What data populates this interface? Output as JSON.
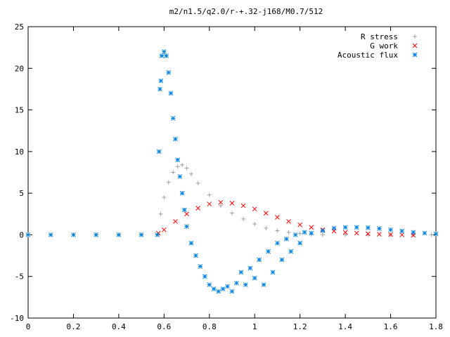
{
  "chart_data": {
    "type": "scatter",
    "title": "m2/n1.5/q2.0/r-+.32-j168/M0.7/512",
    "xlabel": "",
    "ylabel": "",
    "xlim": [
      0,
      1.8
    ],
    "ylim": [
      -10,
      25
    ],
    "x_ticks": [
      "0",
      "0.2",
      "0.4",
      "0.6",
      "0.8",
      "1",
      "1.2",
      "1.4",
      "1.6",
      "1.8"
    ],
    "y_ticks": [
      "-10",
      "-5",
      "0",
      "5",
      "10",
      "15",
      "20",
      "25"
    ],
    "grid": false,
    "legend_position": "top-right",
    "series": [
      {
        "name": "R stress",
        "marker": "plus",
        "color": "#a0a0a0",
        "points": [
          [
            0.0,
            0
          ],
          [
            0.1,
            0
          ],
          [
            0.2,
            0
          ],
          [
            0.3,
            0
          ],
          [
            0.4,
            0
          ],
          [
            0.5,
            0
          ],
          [
            0.575,
            0
          ],
          [
            0.585,
            2.5
          ],
          [
            0.6,
            4.5
          ],
          [
            0.62,
            6.3
          ],
          [
            0.64,
            7.5
          ],
          [
            0.66,
            8.2
          ],
          [
            0.68,
            8.4
          ],
          [
            0.7,
            8.0
          ],
          [
            0.72,
            7.3
          ],
          [
            0.75,
            6.2
          ],
          [
            0.8,
            4.8
          ],
          [
            0.85,
            3.5
          ],
          [
            0.9,
            2.6
          ],
          [
            0.95,
            1.9
          ],
          [
            1.0,
            1.3
          ],
          [
            1.05,
            0.8
          ],
          [
            1.1,
            0.5
          ],
          [
            1.15,
            0.3
          ],
          [
            1.2,
            0.15
          ],
          [
            1.25,
            0.05
          ],
          [
            1.3,
            0
          ],
          [
            1.4,
            0
          ],
          [
            1.5,
            0
          ],
          [
            1.6,
            0
          ],
          [
            1.7,
            0
          ],
          [
            1.78,
            0
          ]
        ]
      },
      {
        "name": "G work",
        "marker": "cross",
        "color": "#ff0000",
        "points": [
          [
            0.575,
            0.2
          ],
          [
            0.6,
            0.6
          ],
          [
            0.65,
            1.6
          ],
          [
            0.7,
            2.5
          ],
          [
            0.75,
            3.2
          ],
          [
            0.8,
            3.7
          ],
          [
            0.85,
            3.9
          ],
          [
            0.9,
            3.8
          ],
          [
            0.95,
            3.5
          ],
          [
            1.0,
            3.1
          ],
          [
            1.05,
            2.6
          ],
          [
            1.1,
            2.1
          ],
          [
            1.15,
            1.6
          ],
          [
            1.2,
            1.2
          ],
          [
            1.25,
            0.9
          ],
          [
            1.3,
            0.6
          ],
          [
            1.35,
            0.45
          ],
          [
            1.4,
            0.3
          ],
          [
            1.45,
            0.2
          ],
          [
            1.5,
            0.12
          ],
          [
            1.55,
            0.07
          ],
          [
            1.6,
            0.03
          ],
          [
            1.65,
            0.0
          ],
          [
            1.7,
            -0.05
          ]
        ]
      },
      {
        "name": "Acoustic flux",
        "marker": "star",
        "color": "#0080e0",
        "points": [
          [
            0.0,
            0
          ],
          [
            0.1,
            0
          ],
          [
            0.2,
            0
          ],
          [
            0.3,
            0
          ],
          [
            0.4,
            0
          ],
          [
            0.5,
            0
          ],
          [
            0.57,
            0
          ],
          [
            0.578,
            10
          ],
          [
            0.582,
            17.5
          ],
          [
            0.586,
            18.5
          ],
          [
            0.59,
            21.5
          ],
          [
            0.6,
            22
          ],
          [
            0.61,
            21.5
          ],
          [
            0.62,
            19.5
          ],
          [
            0.63,
            17
          ],
          [
            0.64,
            14
          ],
          [
            0.65,
            11.5
          ],
          [
            0.66,
            9
          ],
          [
            0.67,
            7
          ],
          [
            0.68,
            5
          ],
          [
            0.69,
            3
          ],
          [
            0.7,
            1
          ],
          [
            0.72,
            -1
          ],
          [
            0.74,
            -2.5
          ],
          [
            0.76,
            -3.8
          ],
          [
            0.78,
            -5
          ],
          [
            0.8,
            -6
          ],
          [
            0.82,
            -6.5
          ],
          [
            0.84,
            -6.8
          ],
          [
            0.86,
            -6.5
          ],
          [
            0.88,
            -6.2
          ],
          [
            0.9,
            -6.8
          ],
          [
            0.92,
            -5.8
          ],
          [
            0.94,
            -4.5
          ],
          [
            0.96,
            -6.0
          ],
          [
            0.98,
            -4.0
          ],
          [
            1.0,
            -5.2
          ],
          [
            1.02,
            -3.0
          ],
          [
            1.04,
            -6.0
          ],
          [
            1.06,
            -2.0
          ],
          [
            1.08,
            -4.5
          ],
          [
            1.1,
            -1.0
          ],
          [
            1.12,
            -3.0
          ],
          [
            1.14,
            -0.5
          ],
          [
            1.16,
            -2.0
          ],
          [
            1.18,
            0.0
          ],
          [
            1.2,
            -1.0
          ],
          [
            1.22,
            0.3
          ],
          [
            1.25,
            0.2
          ],
          [
            1.3,
            0.5
          ],
          [
            1.35,
            0.8
          ],
          [
            1.4,
            0.9
          ],
          [
            1.45,
            0.9
          ],
          [
            1.5,
            0.85
          ],
          [
            1.55,
            0.75
          ],
          [
            1.6,
            0.6
          ],
          [
            1.65,
            0.45
          ],
          [
            1.7,
            0.3
          ],
          [
            1.75,
            0.2
          ],
          [
            1.8,
            0.1
          ]
        ]
      }
    ]
  }
}
